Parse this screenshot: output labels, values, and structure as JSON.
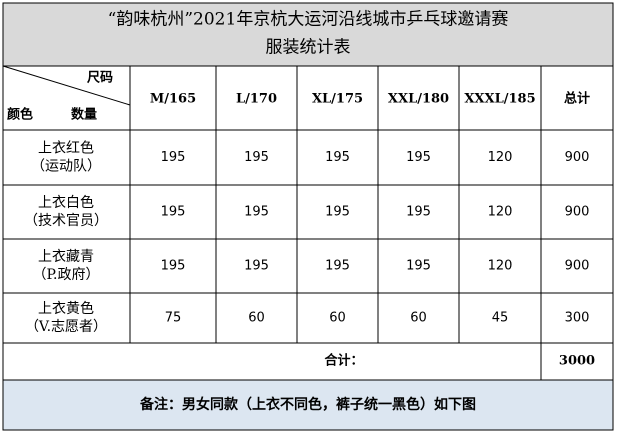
{
  "title": {
    "line1": "“韵味杭州”2021年京杭大运河沿线城市乒乓球邀请赛",
    "line2": "服装统计表"
  },
  "table": {
    "corner": {
      "size": "尺码",
      "color": "颜色",
      "count": "数量"
    },
    "columns": [
      "M/165",
      "L/170",
      "XL/175",
      "XXL/180",
      "XXXL/185",
      "总计"
    ],
    "rows": [
      {
        "label": [
          "上衣红色",
          "（运动队）"
        ],
        "values": [
          195,
          195,
          195,
          195,
          120,
          900
        ]
      },
      {
        "label": [
          "上衣白色",
          "（技术官员）"
        ],
        "values": [
          195,
          195,
          195,
          195,
          120,
          900
        ]
      },
      {
        "label": [
          "上衣藏青",
          "（P.政府）"
        ],
        "values": [
          195,
          195,
          195,
          195,
          120,
          900
        ]
      },
      {
        "label": [
          "上衣黄色",
          "（V.志愿者）"
        ],
        "values": [
          75,
          60,
          60,
          60,
          45,
          300
        ]
      }
    ],
    "total": {
      "label": "合计：",
      "value": 3000
    },
    "note": "备注：男女同款（上衣不同色，裤子统一黑色）如下图"
  }
}
